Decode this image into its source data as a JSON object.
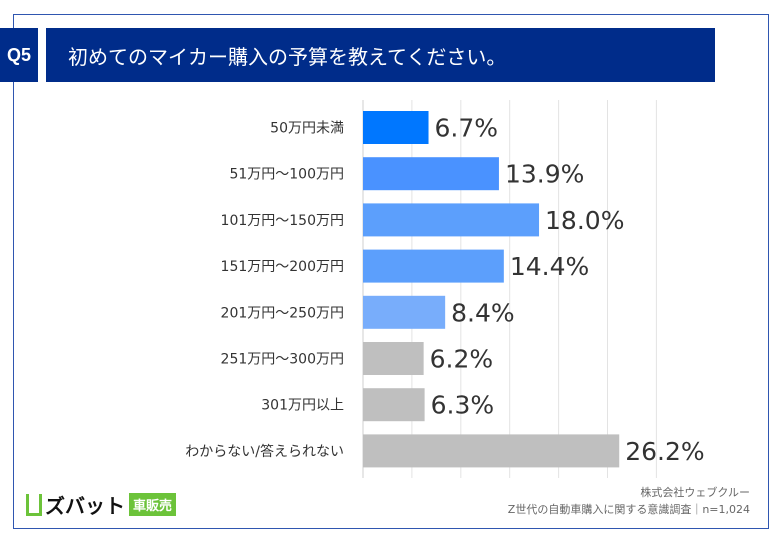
{
  "header": {
    "badge": "Q5",
    "title": "初めてのマイカー購入の予算を教えてください。"
  },
  "chart_data": {
    "type": "bar",
    "orientation": "horizontal",
    "categories": [
      "50万円未満",
      "51万円〜100万円",
      "101万円〜150万円",
      "151万円〜200万円",
      "201万円〜250万円",
      "251万円〜300万円",
      "301万円以上",
      "わからない/答えられない"
    ],
    "values": [
      6.7,
      13.9,
      18.0,
      14.4,
      8.4,
      6.2,
      6.3,
      26.2
    ],
    "labels": [
      "6.7%",
      "13.9%",
      "18.0%",
      "14.4%",
      "8.4%",
      "6.2%",
      "6.3%",
      "26.2%"
    ],
    "colors": [
      "#0077ff",
      "#4a92ff",
      "#5c9ffc",
      "#5c9ffc",
      "#78adfb",
      "#bfbfbf",
      "#bfbfbf",
      "#bfbfbf"
    ],
    "xlim": [
      0,
      30
    ],
    "grid": true,
    "grid_step": 5
  },
  "footer": {
    "logo": "ズバット",
    "logo_sub": "車販売",
    "company": "株式会社ウェブクルー",
    "survey": "Z世代の自動車購入に関する意識調査｜n=1,024"
  }
}
